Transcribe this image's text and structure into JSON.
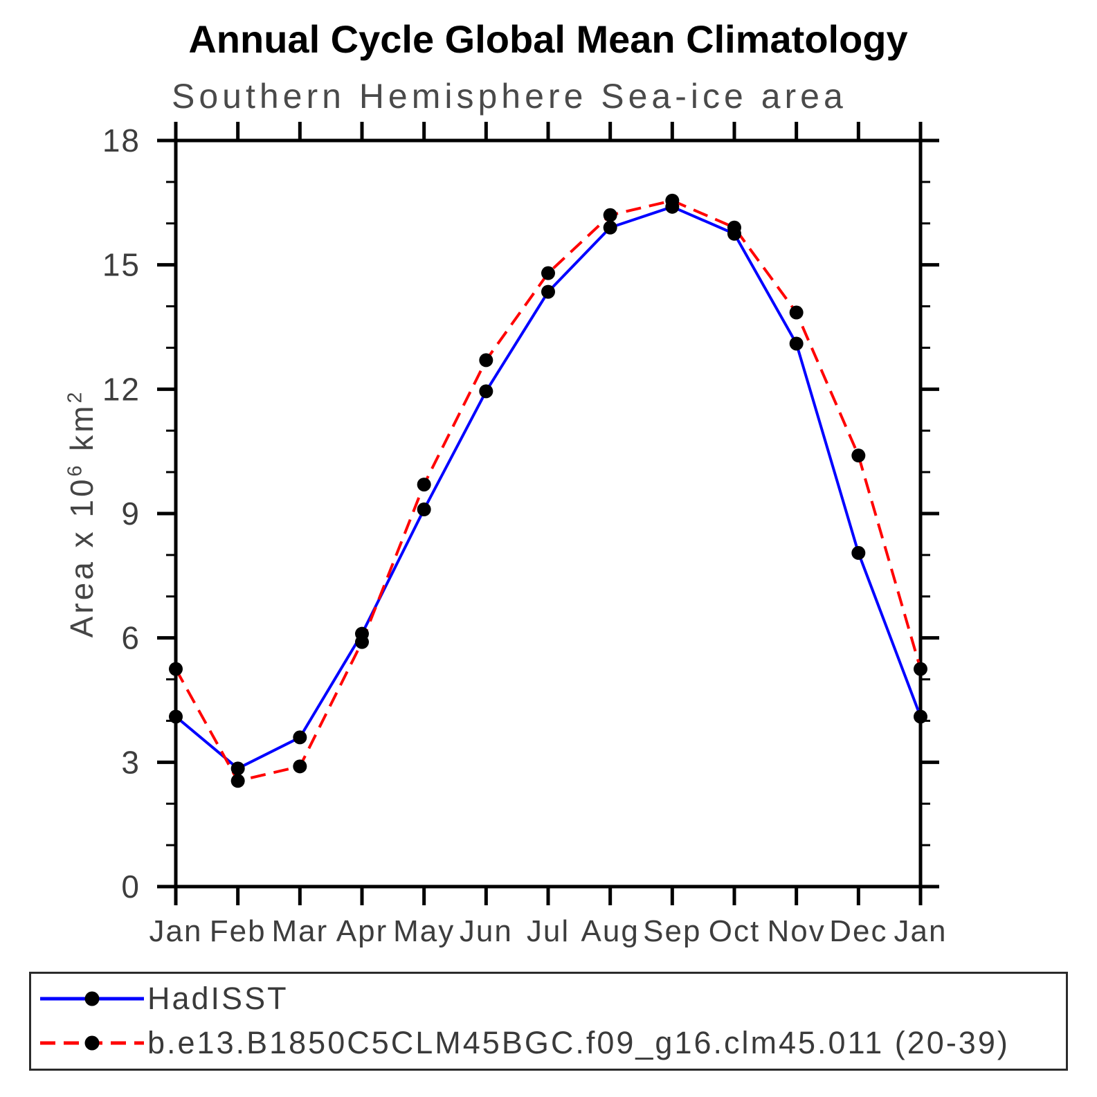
{
  "chart": {
    "title": "Annual Cycle Global Mean Climatology",
    "subtitle": "Southern Hemisphere Sea-ice area",
    "ylabel_parts": {
      "base1": "Area x 10",
      "sup1": "6",
      "base2": " km",
      "sup2": "2"
    }
  },
  "legend": {
    "items": [
      {
        "label": "HadISST",
        "color": "#0000ff",
        "style": "solid",
        "marker": "filled-circle"
      },
      {
        "label": "b.e13.B1850C5CLM45BGC.f09_g16.clm45.011 (20-39)",
        "color": "#ff0000",
        "style": "dashed",
        "marker": "filled-circle"
      }
    ]
  },
  "chart_data": {
    "type": "line",
    "title": "Annual Cycle Global Mean Climatology",
    "subtitle": "Southern Hemisphere Sea-ice area",
    "xlabel": "",
    "ylabel": "Area x 10^6 km^2",
    "categories": [
      "Jan",
      "Feb",
      "Mar",
      "Apr",
      "May",
      "Jun",
      "Jul",
      "Aug",
      "Sep",
      "Oct",
      "Nov",
      "Dec",
      "Jan"
    ],
    "series": [
      {
        "name": "HadISST",
        "color": "#0000ff",
        "line_style": "solid",
        "marker": "filled-circle",
        "marker_color": "#000000",
        "values": [
          4.1,
          2.85,
          3.6,
          6.1,
          9.1,
          11.95,
          14.35,
          15.9,
          16.4,
          15.75,
          13.1,
          8.05,
          4.1
        ]
      },
      {
        "name": "b.e13.B1850C5CLM45BGC.f09_g16.clm45.011 (20-39)",
        "color": "#ff0000",
        "line_style": "dashed",
        "marker": "filled-circle",
        "marker_color": "#000000",
        "values": [
          5.25,
          2.55,
          2.9,
          5.9,
          9.7,
          12.7,
          14.8,
          16.2,
          16.55,
          15.9,
          13.85,
          10.4,
          5.25
        ]
      }
    ],
    "ylim": [
      0,
      18
    ],
    "yticks_major": [
      0,
      3,
      6,
      9,
      12,
      15,
      18
    ],
    "ytick_minor_step": 1,
    "grid": false,
    "tick_direction": "out",
    "legend_position": "below"
  }
}
